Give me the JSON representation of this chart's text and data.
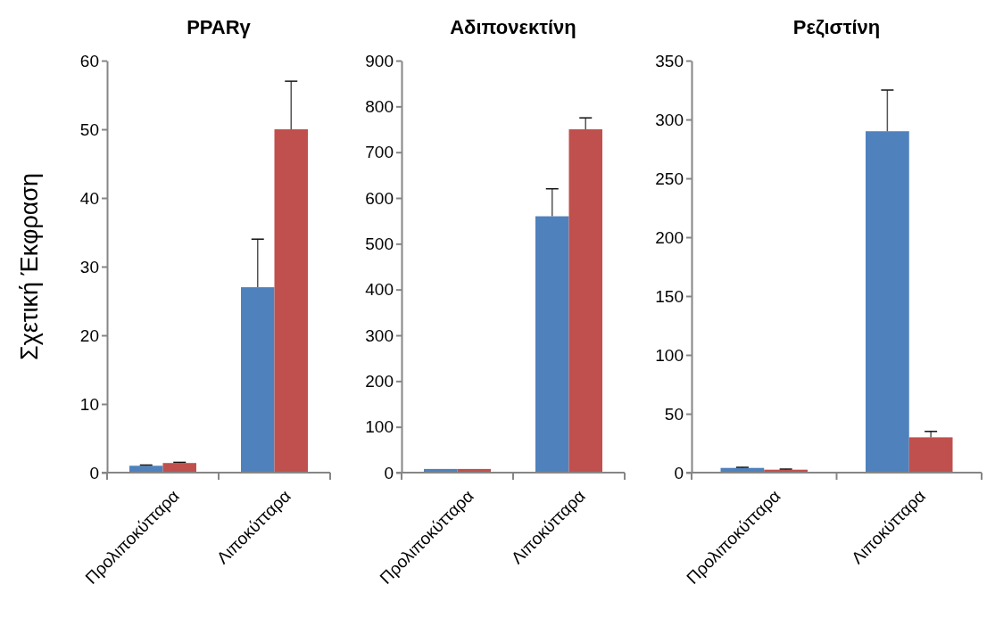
{
  "chart_data": [
    {
      "type": "bar",
      "title": "PPARγ",
      "ylabel": "Σχετική Έκφραση",
      "categories": [
        "Προλιποκύτταρα",
        "Λιποκύτταρα"
      ],
      "ylim": [
        0,
        60
      ],
      "yticks": [
        0,
        10,
        20,
        30,
        40,
        50,
        60
      ],
      "grid": false,
      "series": [
        {
          "color": "#4f81bd",
          "values": [
            1,
            27
          ],
          "errors": [
            [
              1,
              1.1
            ],
            [
              27,
              34
            ]
          ]
        },
        {
          "color": "#c0504d",
          "values": [
            1.4,
            50
          ],
          "errors": [
            [
              1.4,
              1.5
            ],
            [
              50,
              57
            ]
          ]
        }
      ]
    },
    {
      "type": "bar",
      "title": "Αδιπονεκτίνη",
      "categories": [
        "Προλιποκύτταρα",
        "Λιποκύτταρα"
      ],
      "ylim": [
        0,
        900
      ],
      "yticks": [
        0,
        100,
        200,
        300,
        400,
        500,
        600,
        700,
        800,
        900
      ],
      "grid": false,
      "series": [
        {
          "color": "#4f81bd",
          "values": [
            8,
            560
          ],
          "errors": [
            null,
            [
              560,
              620
            ]
          ]
        },
        {
          "color": "#c0504d",
          "values": [
            8,
            750
          ],
          "errors": [
            null,
            [
              750,
              775
            ]
          ]
        }
      ]
    },
    {
      "type": "bar",
      "title": "Ρεζιστίνη",
      "categories": [
        "Προλιποκύτταρα",
        "Λιποκύτταρα"
      ],
      "ylim": [
        0,
        350
      ],
      "yticks": [
        0,
        50,
        100,
        150,
        200,
        250,
        300,
        350
      ],
      "grid": false,
      "series": [
        {
          "color": "#4f81bd",
          "values": [
            4,
            290
          ],
          "errors": [
            [
              4,
              4.5
            ],
            [
              290,
              325
            ]
          ]
        },
        {
          "color": "#c0504d",
          "values": [
            2.5,
            30
          ],
          "errors": [
            [
              2.5,
              3
            ],
            [
              30,
              35
            ]
          ]
        }
      ]
    }
  ]
}
